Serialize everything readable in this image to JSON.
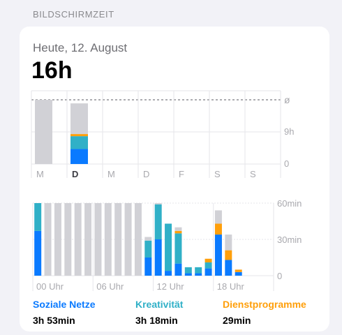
{
  "header": {
    "section_title": "BILDSCHIRMZEIT"
  },
  "summary": {
    "date": "Heute, 12. August",
    "total": "16h"
  },
  "colors": {
    "social": "#0a7aff",
    "creativity": "#30b0c7",
    "utilities": "#ff9f0a",
    "other": "#d1d1d6",
    "grid": "#e5e5ea",
    "tick": "#a9a9ae"
  },
  "chart_data": [
    {
      "type": "bar",
      "categories": [
        "M",
        "D",
        "M",
        "D",
        "F",
        "S",
        "S"
      ],
      "ylim": [
        0,
        18
      ],
      "y_ticks": [
        "0",
        "9h"
      ],
      "avg_label": "ø",
      "average": 18,
      "series": [
        {
          "name": "Soziale Netze",
          "values": [
            0,
            4.2,
            0,
            0,
            0,
            0,
            0
          ]
        },
        {
          "name": "Kreativität",
          "values": [
            0,
            3.6,
            0,
            0,
            0,
            0,
            0
          ]
        },
        {
          "name": "Dienstprogramme",
          "values": [
            0,
            0.6,
            0,
            0,
            0,
            0,
            0
          ]
        },
        {
          "name": "",
          "values": [
            18,
            8.6,
            0,
            0,
            0,
            0,
            0
          ]
        }
      ]
    },
    {
      "type": "bar",
      "categories": [
        "0",
        "1",
        "2",
        "3",
        "4",
        "5",
        "6",
        "7",
        "8",
        "9",
        "10",
        "11",
        "12",
        "13",
        "14",
        "15",
        "16",
        "17",
        "18",
        "19",
        "20",
        "21",
        "22",
        "23"
      ],
      "x_tick_labels": [
        "00 Uhr",
        "06 Uhr",
        "12 Uhr",
        "18 Uhr"
      ],
      "ylim": [
        0,
        60
      ],
      "y_ticks": [
        "0",
        "30min",
        "60min"
      ],
      "series": [
        {
          "name": "Soziale Netze",
          "values": [
            37,
            0,
            0,
            0,
            0,
            0,
            0,
            0,
            0,
            0,
            0,
            15,
            30,
            4,
            10,
            2,
            2,
            6,
            34,
            13,
            3,
            0,
            0,
            0
          ]
        },
        {
          "name": "Kreativität",
          "values": [
            23,
            0,
            0,
            0,
            0,
            0,
            0,
            0,
            0,
            0,
            0,
            14,
            29,
            39,
            25,
            5,
            5,
            5,
            0,
            0,
            0,
            0,
            0,
            0
          ]
        },
        {
          "name": "Dienstprogramme",
          "values": [
            0,
            0,
            0,
            0,
            0,
            0,
            0,
            0,
            0,
            0,
            0,
            0,
            0,
            0,
            2,
            0,
            0,
            3,
            9,
            8,
            2,
            0,
            0,
            0
          ]
        },
        {
          "name": "",
          "values": [
            0,
            60,
            60,
            60,
            60,
            60,
            60,
            60,
            60,
            60,
            60,
            3,
            1,
            0,
            3,
            0,
            0,
            0,
            11,
            13,
            0,
            0,
            0,
            0
          ]
        }
      ]
    }
  ],
  "categories": [
    {
      "label": "Soziale Netze",
      "value": "3h 53min",
      "color": "#0a7aff"
    },
    {
      "label": "Kreativität",
      "value": "3h 18min",
      "color": "#30b0c7"
    },
    {
      "label": "Dienstprogramme",
      "value": "29min",
      "color": "#ff9f0a"
    }
  ]
}
